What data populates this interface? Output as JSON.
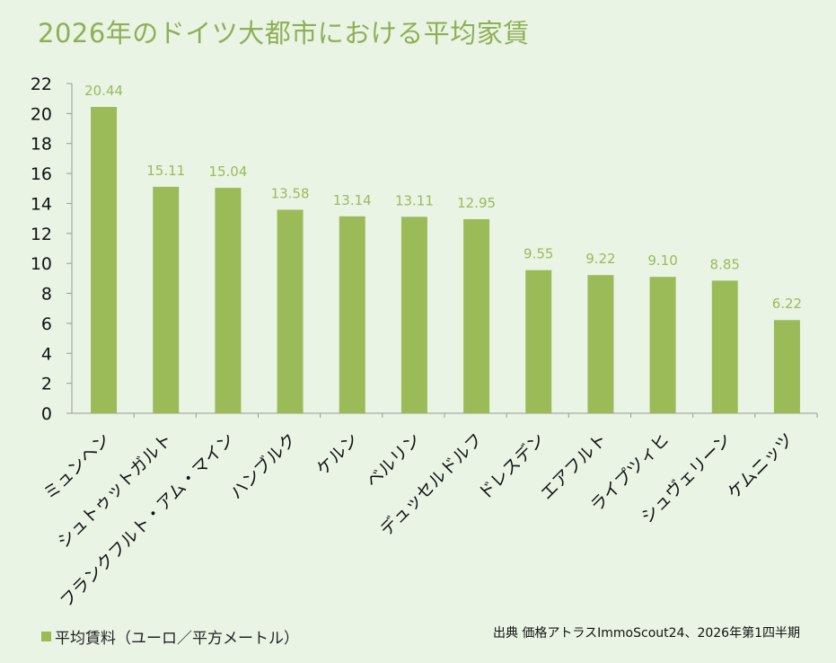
{
  "chart_data": {
    "type": "bar",
    "title": "2026年のドイツ大都市における平均家賃",
    "categories": [
      "ミュンヘン",
      "シュトゥットガルト",
      "フランクフルト・アム・マイン",
      "ハンブルク",
      "ケルン",
      "ベルリン",
      "デュッセルドルフ",
      "ドレスデン",
      "エアフルト",
      "ライプツィヒ",
      "シュヴェリーン",
      "ケムニッツ"
    ],
    "series": [
      {
        "name": "平均賃料（ユーロ／平方メートル）",
        "values": [
          20.44,
          15.11,
          15.04,
          13.58,
          13.14,
          13.11,
          12.95,
          9.55,
          9.22,
          9.1,
          8.85,
          6.22
        ]
      }
    ],
    "data_labels": [
      "20.44",
      "15.11",
      "15.04",
      "13.58",
      "13.14",
      "13.11",
      "12.95",
      "9.55",
      "9.22",
      "9.10",
      "8.85",
      "6.22"
    ],
    "ylim": [
      0,
      22
    ],
    "yticks": [
      0,
      2,
      4,
      6,
      8,
      10,
      12,
      14,
      16,
      18,
      20,
      22
    ],
    "grid": false,
    "legend_position": "bottom-left",
    "source": "出典 価格アトラスImmoScout24、2026年第1四半期",
    "colors": {
      "bar": "#9bbb59",
      "label": "#9bbb59",
      "title": "#8faf55",
      "background": "#e9f4e5"
    }
  }
}
